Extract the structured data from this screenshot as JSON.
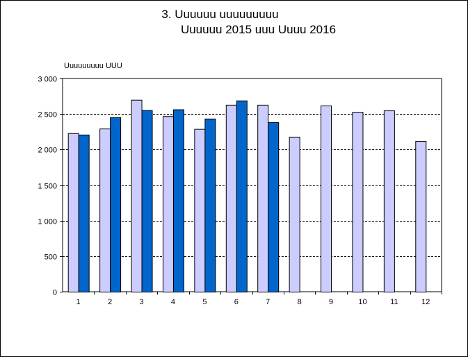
{
  "chart_data": {
    "type": "bar",
    "title_lines": [
      "3. Uuuuuu uuuuuuuuu",
      "Uuuuuu 2015 uuu Uuuu 2016"
    ],
    "ylabel": "Uuuuuuuuu UUU",
    "xlabel": "",
    "categories": [
      "1",
      "2",
      "3",
      "4",
      "5",
      "6",
      "7",
      "8",
      "9",
      "10",
      "11",
      "12"
    ],
    "series": [
      {
        "color": "#ccccff",
        "values": [
          2230,
          2295,
          2700,
          2470,
          2290,
          2630,
          2630,
          2180,
          2620,
          2530,
          2550,
          2120
        ]
      },
      {
        "color": "#0066cc",
        "values": [
          2210,
          2455,
          2555,
          2565,
          2435,
          2690,
          2385,
          null,
          null,
          null,
          null,
          null
        ]
      }
    ],
    "ylim": [
      0,
      3000
    ],
    "yticks": [
      0,
      500,
      1000,
      1500,
      2000,
      2500,
      3000
    ],
    "ytick_labels": [
      "0",
      "500",
      "1 000",
      "1 500",
      "2 000",
      "2 500",
      "3 000"
    ],
    "grid": "horizontal-dashed",
    "legend": "none"
  }
}
